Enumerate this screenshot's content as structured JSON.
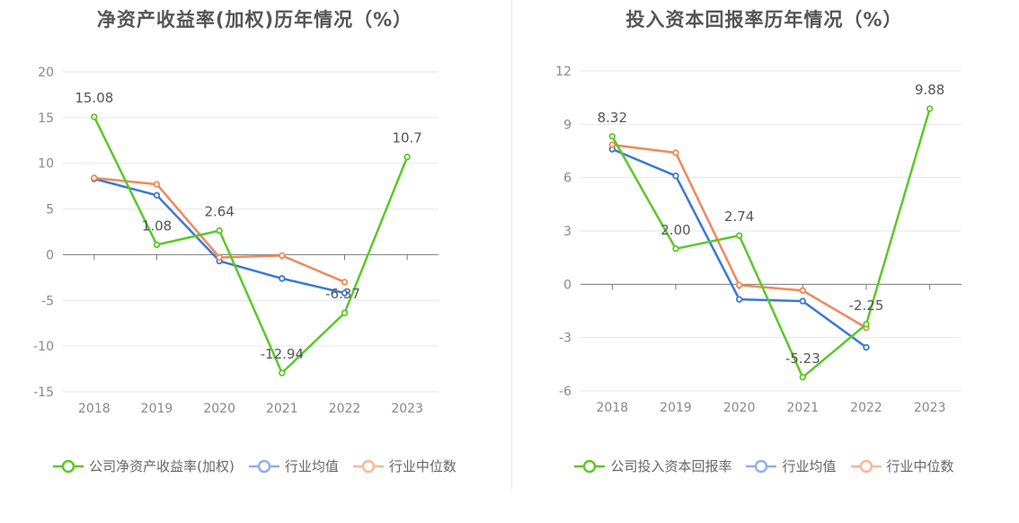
{
  "charts": [
    {
      "title": "净资产收益率(加权)历年情况（%）",
      "legend": [
        "公司净资产收益率(加权)",
        "行业均值",
        "行业中位数"
      ]
    },
    {
      "title": "投入资本回报率历年情况（%）",
      "legend": [
        "公司投入资本回报率",
        "行业均值",
        "行业中位数"
      ]
    }
  ],
  "chart_data": [
    {
      "type": "line",
      "title": "净资产收益率(加权)历年情况（%）",
      "categories": [
        "2018",
        "2019",
        "2020",
        "2021",
        "2022",
        "2023"
      ],
      "ylim": [
        -15,
        20
      ],
      "yticks": [
        "20",
        "15",
        "10",
        "5",
        "0",
        "-5",
        "-10",
        "-15"
      ],
      "grid": true,
      "legend_position": "bottom",
      "series": [
        {
          "name": "公司净资产收益率(加权)",
          "color": "#5cc72a",
          "values": [
            15.08,
            1.08,
            2.64,
            -12.94,
            -6.37,
            10.7
          ],
          "labels": [
            "15.08",
            "1.08",
            "2.64",
            "-12.94",
            "-6.37",
            "10.7"
          ]
        },
        {
          "name": "行业均值",
          "color": "#3a78d6",
          "values": [
            8.3,
            6.5,
            -0.7,
            -2.6,
            -4.2,
            null
          ]
        },
        {
          "name": "行业中位数",
          "color": "#f0885a",
          "values": [
            8.4,
            7.7,
            -0.3,
            -0.1,
            -3.0,
            null
          ]
        }
      ]
    },
    {
      "type": "line",
      "title": "投入资本回报率历年情况（%）",
      "categories": [
        "2018",
        "2019",
        "2020",
        "2021",
        "2022",
        "2023"
      ],
      "ylim": [
        -6,
        12
      ],
      "yticks": [
        "12",
        "9",
        "6",
        "3",
        "0",
        "-3",
        "-6"
      ],
      "grid": true,
      "legend_position": "bottom",
      "series": [
        {
          "name": "公司投入资本回报率",
          "color": "#5cc72a",
          "values": [
            8.32,
            2.0,
            2.74,
            -5.23,
            -2.25,
            9.88
          ],
          "labels": [
            "8.32",
            "2.00",
            "2.74",
            "-5.23",
            "-2.25",
            "9.88"
          ]
        },
        {
          "name": "行业均值",
          "color": "#3a78d6",
          "values": [
            7.6,
            6.1,
            -0.85,
            -0.95,
            -3.55,
            null
          ]
        },
        {
          "name": "行业中位数",
          "color": "#f0885a",
          "values": [
            7.85,
            7.4,
            -0.05,
            -0.35,
            -2.45,
            null
          ]
        }
      ]
    }
  ]
}
